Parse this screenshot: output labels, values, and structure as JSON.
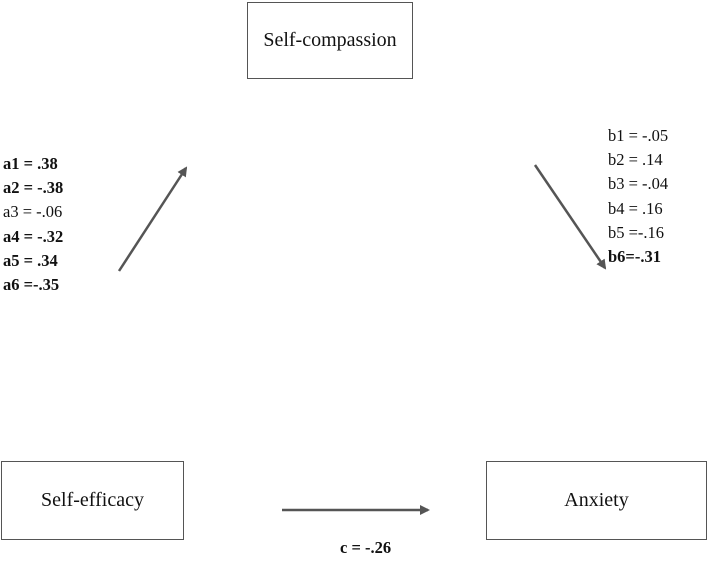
{
  "nodes": {
    "mediator": "Self-compassion",
    "predictor": "Self-efficacy",
    "outcome": "Anxiety"
  },
  "a_paths": [
    {
      "label": "a1 = .38",
      "significant": true
    },
    {
      "label": "a2 = -.38",
      "significant": true
    },
    {
      "label": "a3 = -.06",
      "significant": false
    },
    {
      "label": "a4 = -.32",
      "significant": true
    },
    {
      "label": "a5 = .34",
      "significant": true
    },
    {
      "label": "a6 =-.35",
      "significant": true
    }
  ],
  "b_paths": [
    {
      "label": "b1 = -.05",
      "significant": false
    },
    {
      "label": "b2 = .14",
      "significant": false
    },
    {
      "label": "b3 = -.04",
      "significant": false
    },
    {
      "label": "b4 = .16",
      "significant": false
    },
    {
      "label": "b5 =-.16",
      "significant": false
    },
    {
      "label": "b6=-.31",
      "significant": true
    }
  ],
  "c_path": {
    "label": "c = -.26",
    "significant": true
  },
  "colors": {
    "arrow": "#555555",
    "border": "#555555",
    "text": "#111111"
  }
}
